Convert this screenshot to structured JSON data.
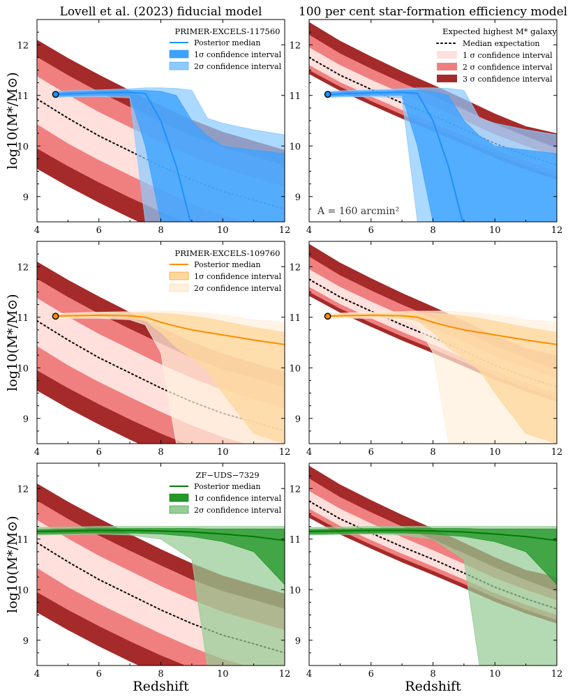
{
  "figure": {
    "column_titles": [
      "Lovell et al. (2023) fiducial model",
      "100 per cent star-formation efficiency model"
    ],
    "ylabel": "log10(M*/M⊙)",
    "xlabel": "Redshift"
  },
  "chart_data": {
    "type": "area",
    "xlim": [
      4,
      12
    ],
    "ylim": [
      8.5,
      12.5
    ],
    "xticks": [
      4,
      6,
      8,
      10,
      12
    ],
    "yticks": [
      9,
      10,
      11,
      12
    ],
    "colors": {
      "sigma1": "#ffe0dc",
      "sigma2": "#f08080",
      "sigma3": "#a52a2a",
      "median_line": "#000000"
    },
    "models": [
      {
        "name": "Lovell et al. (2023) fiducial model",
        "x": [
          4,
          5,
          6,
          7,
          8,
          9,
          10,
          11,
          12
        ],
        "median": [
          10.93,
          10.55,
          10.2,
          9.9,
          9.6,
          9.33,
          9.1,
          8.93,
          8.75
        ],
        "sigma1": {
          "lower": [
            10.43,
            10.05,
            9.72,
            9.42,
            9.13,
            8.86,
            8.63,
            8.45,
            8.28
          ],
          "upper": [
            11.38,
            11.01,
            10.67,
            10.37,
            10.07,
            9.8,
            9.56,
            9.38,
            9.2
          ]
        },
        "sigma2": {
          "lower": [
            9.95,
            9.6,
            9.28,
            8.98,
            8.7,
            8.45,
            8.22,
            8.05,
            7.9
          ],
          "upper": [
            11.76,
            11.4,
            11.07,
            10.77,
            10.48,
            10.2,
            9.97,
            9.8,
            9.62
          ]
        },
        "sigma3": {
          "lower": [
            9.55,
            9.2,
            8.88,
            8.58,
            8.3,
            8.05,
            7.82,
            7.65,
            7.5
          ],
          "upper": [
            12.1,
            11.74,
            11.41,
            11.1,
            10.8,
            10.52,
            10.28,
            10.1,
            9.92
          ]
        }
      },
      {
        "name": "100 per cent star-formation efficiency model",
        "x": [
          4,
          5,
          6,
          7,
          8,
          9,
          10,
          11,
          12
        ],
        "median": [
          11.75,
          11.4,
          11.12,
          10.85,
          10.6,
          10.33,
          10.05,
          9.82,
          9.62
        ],
        "sigma1": {
          "lower": [
            11.6,
            11.26,
            10.98,
            10.71,
            10.46,
            10.2,
            9.93,
            9.7,
            9.5
          ],
          "upper": [
            11.95,
            11.6,
            11.31,
            11.04,
            10.78,
            10.51,
            10.23,
            10.0,
            9.79
          ]
        },
        "sigma2": {
          "lower": [
            11.5,
            11.17,
            10.89,
            10.62,
            10.37,
            10.11,
            9.84,
            9.6,
            9.4
          ],
          "upper": [
            12.2,
            11.83,
            11.53,
            11.25,
            10.99,
            10.72,
            10.44,
            10.19,
            9.96
          ]
        },
        "sigma3": {
          "lower": [
            11.42,
            11.09,
            10.81,
            10.54,
            10.29,
            10.03,
            9.76,
            9.53,
            9.33
          ],
          "upper": [
            12.45,
            12.08,
            11.77,
            11.48,
            11.21,
            10.93,
            10.64,
            10.39,
            10.25
          ]
        }
      }
    ],
    "galaxies": [
      {
        "name": "PRIMER-EXCELS-117560",
        "color": "#1e90ff",
        "color_1sigma": "#3ea3ff",
        "color_2sigma": "#8ccaff",
        "marker": {
          "x": 4.6,
          "y": 11.02
        },
        "x": [
          4.6,
          5,
          6,
          7,
          7.5,
          8,
          8.5,
          9,
          9.5,
          10,
          11,
          12
        ],
        "median": [
          11.02,
          11.03,
          11.05,
          11.06,
          11.04,
          10.5,
          9.6,
          8.4,
          null,
          null,
          null,
          null
        ],
        "sigma1": {
          "lower": [
            10.98,
            10.99,
            11.0,
            11.0,
            10.0,
            8.5,
            8.5,
            8.5,
            8.5,
            8.5,
            8.5,
            8.5
          ],
          "upper": [
            11.06,
            11.07,
            11.09,
            11.1,
            11.1,
            11.08,
            11.0,
            10.5,
            10.2,
            10.0,
            9.92,
            9.85
          ]
        },
        "sigma2": {
          "lower": [
            10.96,
            10.97,
            10.98,
            10.95,
            8.5,
            8.5,
            8.5,
            8.5,
            8.5,
            8.5,
            8.5,
            8.5
          ],
          "upper": [
            11.08,
            11.09,
            11.11,
            11.13,
            11.15,
            11.15,
            11.14,
            11.1,
            10.55,
            10.45,
            10.32,
            10.22
          ]
        }
      },
      {
        "name": "PRIMER-EXCELS-109760",
        "color": "#ff8c00",
        "color_1sigma": "#ffd8a0",
        "color_2sigma": "#fff0dc",
        "marker": {
          "x": 4.6,
          "y": 11.02
        },
        "x": [
          4.6,
          5,
          6,
          7,
          7.5,
          8,
          8.5,
          9,
          9.5,
          10,
          11,
          12
        ],
        "median": [
          11.02,
          11.03,
          11.04,
          11.03,
          11.0,
          10.9,
          10.82,
          10.75,
          10.7,
          10.65,
          10.55,
          10.46
        ],
        "sigma1": {
          "lower": [
            10.99,
            11.0,
            11.0,
            10.98,
            10.93,
            10.7,
            10.4,
            10.2,
            9.95,
            9.5,
            8.7,
            8.5
          ],
          "upper": [
            11.05,
            11.06,
            11.08,
            11.09,
            11.09,
            11.08,
            11.06,
            11.02,
            10.98,
            10.92,
            10.8,
            10.7
          ]
        },
        "sigma2": {
          "lower": [
            10.97,
            10.98,
            10.98,
            10.95,
            10.85,
            10.3,
            8.5,
            8.5,
            8.5,
            8.5,
            8.5,
            8.5
          ],
          "upper": [
            11.07,
            11.08,
            11.1,
            11.11,
            11.12,
            11.12,
            11.12,
            11.1,
            11.08,
            11.05,
            10.95,
            10.9
          ]
        }
      },
      {
        "name": "ZF−UDS−7329",
        "color": "#007a00",
        "color_1sigma": "#26982a",
        "color_2sigma": "#96cc96",
        "marker": null,
        "x": [
          4,
          5,
          6,
          7,
          8,
          9,
          9.5,
          10,
          11,
          12
        ],
        "median": [
          11.15,
          11.16,
          11.17,
          11.17,
          11.16,
          11.14,
          11.12,
          11.1,
          11.05,
          10.97
        ],
        "sigma1": {
          "lower": [
            11.1,
            11.11,
            11.12,
            11.12,
            11.1,
            11.05,
            11.0,
            10.95,
            10.75,
            10.1
          ],
          "upper": [
            11.19,
            11.2,
            11.21,
            11.21,
            11.21,
            11.21,
            11.2,
            11.2,
            11.2,
            11.2
          ]
        },
        "sigma2": {
          "lower": [
            11.08,
            11.09,
            11.1,
            11.08,
            11.0,
            10.6,
            8.5,
            8.5,
            8.5,
            8.5
          ],
          "upper": [
            11.23,
            11.24,
            11.25,
            11.25,
            11.25,
            11.25,
            11.25,
            11.25,
            11.25,
            11.25
          ]
        }
      }
    ],
    "legends": {
      "galaxy_entries": [
        "Posterior median",
        "1σ confidence interval",
        "2σ confidence interval"
      ],
      "model_title": "Expected highest M* galaxy",
      "model_entries": [
        "Median expectation",
        "1 σ confidence interval",
        "2 σ confidence interval",
        "3 σ confidence interval"
      ]
    },
    "annotation": "A = 160 arcmin²"
  }
}
